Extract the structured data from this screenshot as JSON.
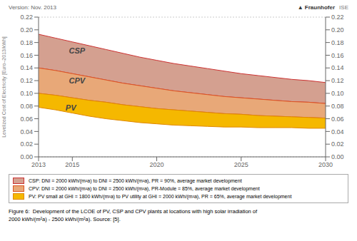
{
  "chart_data": {
    "type": "area",
    "subtitle": "Version: Nov. 2013",
    "caption": "Figure 6:  Development of the LCOE of PV, CSP and CPV plants at locations with high solar irradiation of\n2000 kWh/(m²a) - 2500 kWh/(m²a). Source: [5].",
    "y_label": "Levelized Cost of Electricity [Euro–2013/kWh]",
    "x": [
      2013,
      2014,
      2015,
      2016,
      2017,
      2018,
      2019,
      2020,
      2021,
      2022,
      2023,
      2024,
      2025,
      2026,
      2027,
      2028,
      2029,
      2030
    ],
    "series": [
      {
        "name": "CSP: DNI = 2000 kWh/(m²a) to DNI = 2500 kWh/(m²a), PR = 90%, average market development",
        "color": "#d4a090",
        "edge_color": "#cc3333",
        "upper": [
          0.193,
          0.187,
          0.181,
          0.175,
          0.169,
          0.163,
          0.157,
          0.152,
          0.147,
          0.143,
          0.139,
          0.135,
          0.131,
          0.128,
          0.125,
          0.122,
          0.12,
          0.117
        ],
        "lower": [
          0.14,
          0.136,
          0.131,
          0.126,
          0.121,
          0.116,
          0.112,
          0.108,
          0.104,
          0.101,
          0.098,
          0.095,
          0.093,
          0.091,
          0.089,
          0.087,
          0.086,
          0.084
        ]
      },
      {
        "name": "CPV: DNI = 2000 kWh/(m²a) to DNI = 2500 kWh/(m²a), PR-Module = 85%, average market development",
        "color": "#e8a878",
        "edge_color": "#dd5522",
        "upper": [
          0.14,
          0.136,
          0.131,
          0.126,
          0.121,
          0.116,
          0.112,
          0.108,
          0.104,
          0.101,
          0.098,
          0.095,
          0.093,
          0.091,
          0.089,
          0.087,
          0.086,
          0.084
        ],
        "lower": [
          0.1,
          0.097,
          0.093,
          0.089,
          0.086,
          0.082,
          0.079,
          0.076,
          0.074,
          0.072,
          0.07,
          0.068,
          0.067,
          0.065,
          0.064,
          0.063,
          0.062,
          0.061
        ]
      },
      {
        "name": "PV: PV small at GHI = 1800 kWh/(m²a) to PV utility at GHI = 2000 kWh/(m²a), PR = 65%, average market development",
        "color": "#f5b800",
        "edge_color": "#e08800",
        "upper": [
          0.1,
          0.097,
          0.093,
          0.089,
          0.086,
          0.082,
          0.079,
          0.076,
          0.074,
          0.072,
          0.07,
          0.068,
          0.067,
          0.065,
          0.064,
          0.063,
          0.062,
          0.061
        ],
        "lower": [
          0.078,
          0.074,
          0.069,
          0.064,
          0.06,
          0.057,
          0.054,
          0.052,
          0.05,
          0.049,
          0.048,
          0.047,
          0.047,
          0.046,
          0.046,
          0.046,
          0.045,
          0.045
        ]
      }
    ],
    "xlim": [
      2013,
      2030
    ],
    "xticks": [
      2013,
      2015,
      2020,
      2025,
      2030
    ],
    "ylim": [
      0.0,
      0.22
    ],
    "yticks": [
      {
        "value": 0.0,
        "label": "0.00"
      },
      0.02,
      0.04,
      0.06,
      0.08,
      {
        "value": 0.1,
        "label": "0.10"
      },
      0.12,
      0.14,
      0.16,
      0.18,
      {
        "value": 0.2,
        "label": "0.20"
      },
      0.22
    ],
    "grid": "y",
    "annotations": [
      {
        "text": "CSP",
        "x": 2014.8,
        "y": 0.163
      },
      {
        "text": "CPV",
        "x": 2014.8,
        "y": 0.116
      },
      {
        "text": "PV",
        "x": 2014.6,
        "y": 0.073
      },
      {
        "text": "▲ Fraunhofer"
      },
      {
        "text": "ISE"
      }
    ]
  }
}
